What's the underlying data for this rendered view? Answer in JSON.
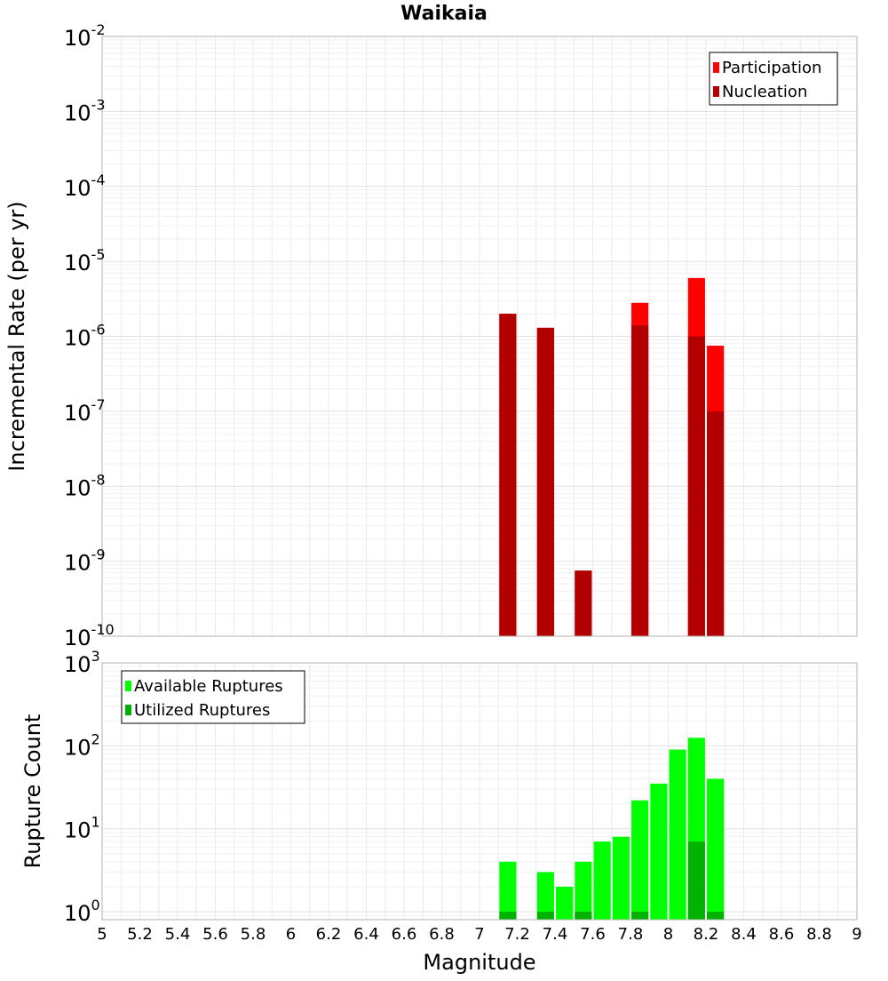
{
  "chart_data": [
    {
      "type": "bar",
      "title": "Waikaia",
      "xlabel": "",
      "ylabel": "Incremental Rate (per yr)",
      "yscale": "log",
      "ylim": [
        1e-10,
        0.01
      ],
      "xlim": [
        5,
        9
      ],
      "grid": true,
      "legend_position": "top-right",
      "y_tick_labels": [
        {
          "mantissa": "10",
          "exp": "-10"
        },
        {
          "mantissa": "10",
          "exp": "-9"
        },
        {
          "mantissa": "10",
          "exp": "-8"
        },
        {
          "mantissa": "10",
          "exp": "-7"
        },
        {
          "mantissa": "10",
          "exp": "-6"
        },
        {
          "mantissa": "10",
          "exp": "-5"
        },
        {
          "mantissa": "10",
          "exp": "-4"
        },
        {
          "mantissa": "10",
          "exp": "-3"
        },
        {
          "mantissa": "10",
          "exp": "-2"
        }
      ],
      "series": [
        {
          "name": "Participation",
          "color": "#ff0000",
          "x": [
            7.15,
            7.35,
            7.55,
            7.85,
            8.15,
            8.25
          ],
          "values": [
            2e-06,
            1.3e-06,
            7.5e-10,
            2.8e-06,
            6e-06,
            7.5e-07
          ]
        },
        {
          "name": "Nucleation",
          "color": "#b20000",
          "x": [
            7.15,
            7.35,
            7.55,
            7.85,
            8.15,
            8.25
          ],
          "values": [
            2e-06,
            1.3e-06,
            7.5e-10,
            1.4e-06,
            1e-06,
            1e-07
          ]
        }
      ]
    },
    {
      "type": "bar",
      "title": "",
      "xlabel": "Magnitude",
      "ylabel": "Rupture Count",
      "yscale": "log",
      "ylim": [
        0.8,
        1000
      ],
      "xlim": [
        5,
        9
      ],
      "grid": true,
      "legend_position": "top-left",
      "x_ticks": [
        "5",
        "5.2",
        "5.4",
        "5.6",
        "5.8",
        "6",
        "6.2",
        "6.4",
        "6.6",
        "6.8",
        "7",
        "7.2",
        "7.4",
        "7.6",
        "7.8",
        "8",
        "8.2",
        "8.4",
        "8.6",
        "8.8",
        "9"
      ],
      "y_tick_labels": [
        {
          "mantissa": "10",
          "exp": "0"
        },
        {
          "mantissa": "10",
          "exp": "1"
        },
        {
          "mantissa": "10",
          "exp": "2"
        },
        {
          "mantissa": "10",
          "exp": "3"
        }
      ],
      "series": [
        {
          "name": "Available Ruptures",
          "color": "#00ff00",
          "x": [
            7.15,
            7.35,
            7.45,
            7.55,
            7.65,
            7.75,
            7.85,
            7.95,
            8.05,
            8.15,
            8.25
          ],
          "values": [
            4,
            3,
            2,
            4,
            7,
            8,
            22,
            35,
            90,
            125,
            40
          ]
        },
        {
          "name": "Utilized Ruptures",
          "color": "#00b200",
          "x": [
            7.15,
            7.35,
            7.55,
            7.85,
            8.15,
            8.25
          ],
          "values": [
            1,
            1,
            1,
            1,
            7,
            1
          ]
        }
      ]
    }
  ]
}
